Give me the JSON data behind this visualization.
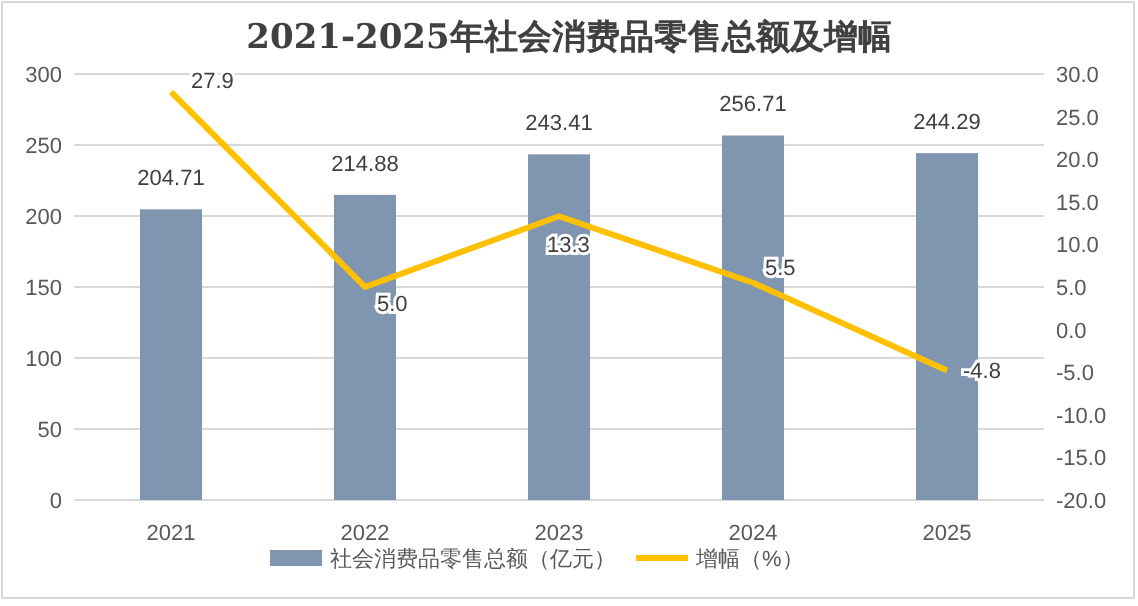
{
  "chart_data": {
    "type": "bar",
    "title": "2021-2025年社会消费品零售总额及增幅",
    "categories": [
      "2021",
      "2022",
      "2023",
      "2024",
      "2025"
    ],
    "series": [
      {
        "name": "社会消费品零售总额（亿元）",
        "type": "bar",
        "color": "#8096b0",
        "values": [
          204.71,
          214.88,
          243.41,
          256.71,
          244.29
        ],
        "value_labels": [
          "204.71",
          "214.88",
          "243.41",
          "256.71",
          "244.29"
        ]
      },
      {
        "name": "增幅（%）",
        "type": "line",
        "axis": "y2",
        "color": "#ffc000",
        "values": [
          27.9,
          5.0,
          13.3,
          5.5,
          -4.8
        ],
        "value_labels": [
          "27.9",
          "5.0",
          "13.3",
          "5.5",
          "-4.8"
        ]
      }
    ],
    "ylim": [
      0,
      300
    ],
    "yticks": [
      0,
      50,
      100,
      150,
      200,
      250,
      300
    ],
    "y2lim": [
      -20,
      30
    ],
    "y2ticks": [
      {
        "value": 30,
        "label": "30.0"
      },
      {
        "value": 25,
        "label": "25.0"
      },
      {
        "value": 20,
        "label": "20.0"
      },
      {
        "value": 15,
        "label": "15.0"
      },
      {
        "value": 10,
        "label": "10.0"
      },
      {
        "value": 5,
        "label": "5.0"
      },
      {
        "value": 0,
        "label": "0.0"
      },
      {
        "value": -5,
        "label": "-5.0"
      },
      {
        "value": -10,
        "label": "-10.0"
      },
      {
        "value": -15,
        "label": "-15.0"
      },
      {
        "value": -20,
        "label": "-20.0"
      }
    ],
    "grid": "y",
    "legend": "bottom",
    "marker": "none",
    "line_style": "solid"
  }
}
